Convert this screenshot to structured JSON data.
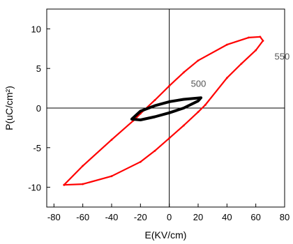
{
  "chart_data": {
    "type": "line",
    "xlabel": "E(KV/cm)",
    "ylabel": "P(uC/cm²)",
    "xlim": [
      -85,
      80
    ],
    "ylim": [
      -12.5,
      12.5
    ],
    "xticks": [
      -80,
      -60,
      -40,
      -20,
      0,
      20,
      40,
      60,
      80
    ],
    "yticks": [
      -10,
      -5,
      0,
      5,
      10
    ],
    "xtick_labels": [
      "-80",
      "-60",
      "-40",
      "-20",
      "0",
      "20",
      "40",
      "60",
      "80"
    ],
    "ytick_labels": [
      "-10",
      "-5",
      "0",
      "5",
      "10"
    ],
    "zero_lines": true,
    "grid": false,
    "series": [
      {
        "name": "550",
        "color": "#ff0000",
        "upper": [
          [
            -73,
            -9.7
          ],
          [
            -60,
            -7.3
          ],
          [
            -40,
            -4.0
          ],
          [
            -25,
            -1.6
          ],
          [
            -20,
            -0.7
          ],
          [
            -10,
            1.0
          ],
          [
            0,
            2.8
          ],
          [
            10,
            4.5
          ],
          [
            20,
            6.0
          ],
          [
            40,
            8.0
          ],
          [
            55,
            8.9
          ],
          [
            63,
            9.0
          ],
          [
            65,
            8.5
          ]
        ],
        "lower": [
          [
            65,
            8.5
          ],
          [
            60,
            7.3
          ],
          [
            50,
            5.6
          ],
          [
            40,
            3.8
          ],
          [
            25,
            0.4
          ],
          [
            20,
            -0.5
          ],
          [
            10,
            -2.2
          ],
          [
            0,
            -3.8
          ],
          [
            -10,
            -5.4
          ],
          [
            -20,
            -6.8
          ],
          [
            -40,
            -8.6
          ],
          [
            -60,
            -9.6
          ],
          [
            -73,
            -9.7
          ]
        ]
      },
      {
        "name": "500",
        "color": "#000000",
        "upper": [
          [
            -26,
            -1.4
          ],
          [
            -20,
            -0.4
          ],
          [
            -10,
            0.3
          ],
          [
            0,
            0.8
          ],
          [
            10,
            1.1
          ],
          [
            22,
            1.3
          ]
        ],
        "lower": [
          [
            22,
            1.3
          ],
          [
            20,
            0.9
          ],
          [
            10,
            0.0
          ],
          [
            0,
            -0.6
          ],
          [
            -10,
            -1.1
          ],
          [
            -20,
            -1.5
          ],
          [
            -26,
            -1.4
          ]
        ]
      }
    ],
    "annotations": [
      {
        "text": "550",
        "x": 73,
        "y": 6.1,
        "color": "#555555"
      },
      {
        "text": "500",
        "x": 15,
        "y": 2.7,
        "color": "#555555"
      }
    ]
  }
}
